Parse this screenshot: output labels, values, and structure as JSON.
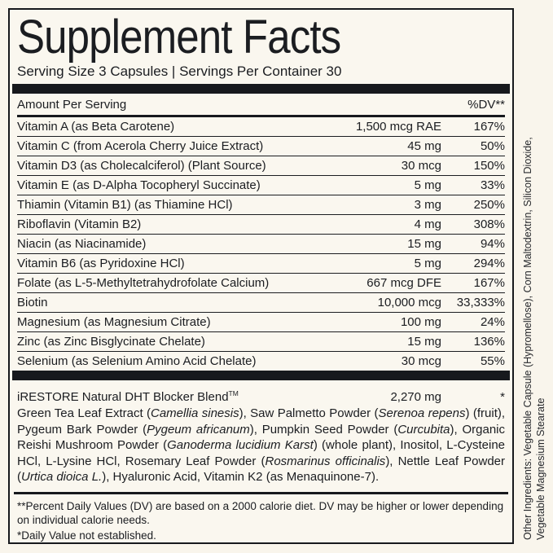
{
  "label": {
    "title": "Supplement Facts",
    "serving_line": "Serving Size 3 Capsules | Servings Per Container 30",
    "header": {
      "amount_per_serving": "Amount Per Serving",
      "dv": "%DV**"
    },
    "rows": [
      {
        "name": "Vitamin A (as Beta Carotene)",
        "amount": "1,500 mcg RAE",
        "dv": "167%"
      },
      {
        "name": "Vitamin C (from Acerola Cherry Juice Extract)",
        "amount": "45 mg",
        "dv": "50%"
      },
      {
        "name": "Vitamin D3 (as Cholecalciferol) (Plant Source)",
        "amount": "30 mcg",
        "dv": "150%"
      },
      {
        "name": "Vitamin E (as D-Alpha Tocopheryl Succinate)",
        "amount": "5 mg",
        "dv": "33%"
      },
      {
        "name": "Thiamin (Vitamin B1) (as Thiamine HCl)",
        "amount": "3 mg",
        "dv": "250%"
      },
      {
        "name": "Riboflavin (Vitamin B2)",
        "amount": "4 mg",
        "dv": "308%"
      },
      {
        "name": "Niacin (as Niacinamide)",
        "amount": "15 mg",
        "dv": "94%"
      },
      {
        "name": "Vitamin B6 (as Pyridoxine HCl)",
        "amount": "5 mg",
        "dv": "294%"
      },
      {
        "name": "Folate (as L-5-Methyltetrahydrofolate Calcium)",
        "amount": "667 mcg DFE",
        "dv": "167%"
      },
      {
        "name": "Biotin",
        "amount": "10,000 mcg",
        "dv": "33,333%"
      },
      {
        "name": "Magnesium (as Magnesium Citrate)",
        "amount": "100 mg",
        "dv": "24%"
      },
      {
        "name": "Zinc (as Zinc Bisglycinate Chelate)",
        "amount": "15 mg",
        "dv": "136%"
      },
      {
        "name": "Selenium (as Selenium Amino Acid Chelate)",
        "amount": "30 mcg",
        "dv": "55%"
      }
    ],
    "blend": {
      "name": "iRESTORE Natural DHT Blocker Blend",
      "trademark": "TM",
      "amount": "2,270 mg",
      "dv": "*",
      "description_segments": [
        {
          "text": "Green Tea Leaf Extract (",
          "italic": false
        },
        {
          "text": "Camellia sinesis",
          "italic": true
        },
        {
          "text": "), Saw Palmetto Powder (",
          "italic": false
        },
        {
          "text": "Serenoa repens",
          "italic": true
        },
        {
          "text": ") (fruit), Pygeum Bark Powder (",
          "italic": false
        },
        {
          "text": "Pygeum africanum",
          "italic": true
        },
        {
          "text": "), Pumpkin Seed Powder (",
          "italic": false
        },
        {
          "text": "Curcubita",
          "italic": true
        },
        {
          "text": "), Organic Reishi Mushroom Powder (",
          "italic": false
        },
        {
          "text": "Ganoderma lucidium Karst",
          "italic": true
        },
        {
          "text": ") (whole plant), Inositol, L-Cysteine HCl, L-Lysine HCl, Rosemary Leaf Powder (",
          "italic": false
        },
        {
          "text": "Rosmarinus officinalis",
          "italic": true
        },
        {
          "text": "), Nettle Leaf Powder (",
          "italic": false
        },
        {
          "text": "Urtica dioica L.",
          "italic": true
        },
        {
          "text": "), Hyaluronic Acid, Vitamin K2 (as Menaquinone-7).",
          "italic": false
        }
      ]
    },
    "footnotes": [
      "**Percent Daily Values (DV) are based on a 2000 calorie diet. DV may be higher or lower depending on individual calorie needs.",
      "*Daily Value not established."
    ],
    "other_ingredients_lines": [
      "Other Ingredients: Vegetable Capsule (Hypromellose), Corn Maltodextrin, Silicon Dioxide,",
      "Vegetable Magnesium Stearate"
    ]
  },
  "colors": {
    "background": "#f9f5ec",
    "panel": "#faf7ef",
    "ink": "#1b1d21",
    "bar": "#17191d"
  }
}
